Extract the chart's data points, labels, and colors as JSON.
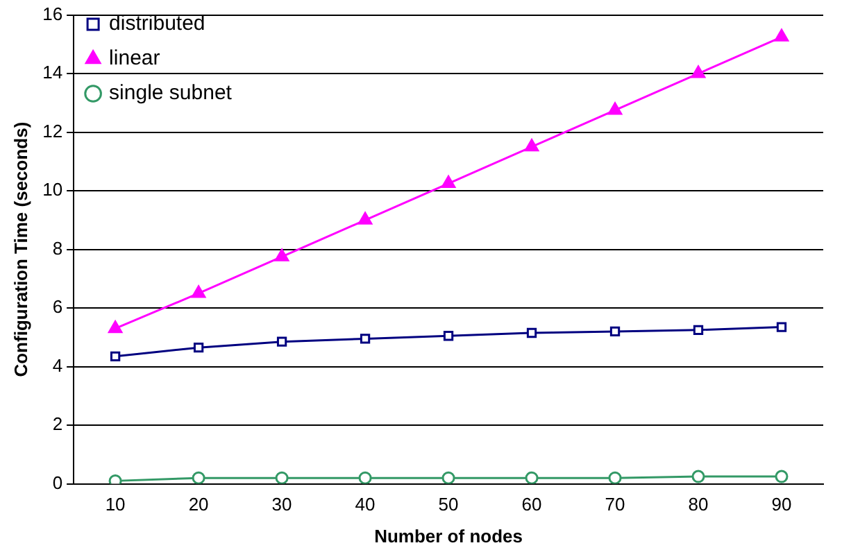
{
  "chart_data": {
    "type": "line",
    "xlabel": "Number of nodes",
    "ylabel": "Configuration Time (seconds)",
    "categories": [
      "10",
      "20",
      "30",
      "40",
      "50",
      "60",
      "70",
      "80",
      "90"
    ],
    "series": [
      {
        "name": "distributed",
        "color": "#000080",
        "marker": "square",
        "values": [
          4.35,
          4.65,
          4.85,
          4.95,
          5.05,
          5.15,
          5.2,
          5.25,
          5.35
        ]
      },
      {
        "name": "linear",
        "color": "#ff00ff",
        "marker": "triangle",
        "values": [
          5.3,
          6.5,
          7.75,
          9.0,
          10.25,
          11.5,
          12.75,
          14.0,
          15.25
        ]
      },
      {
        "name": "single subnet",
        "color": "#339966",
        "marker": "circle",
        "values": [
          0.1,
          0.2,
          0.2,
          0.2,
          0.2,
          0.2,
          0.2,
          0.25,
          0.25
        ]
      }
    ],
    "ylim": [
      0,
      16
    ],
    "yticks": [
      0,
      2,
      4,
      6,
      8,
      10,
      12,
      14,
      16
    ],
    "grid": "y",
    "legend": "top left"
  }
}
